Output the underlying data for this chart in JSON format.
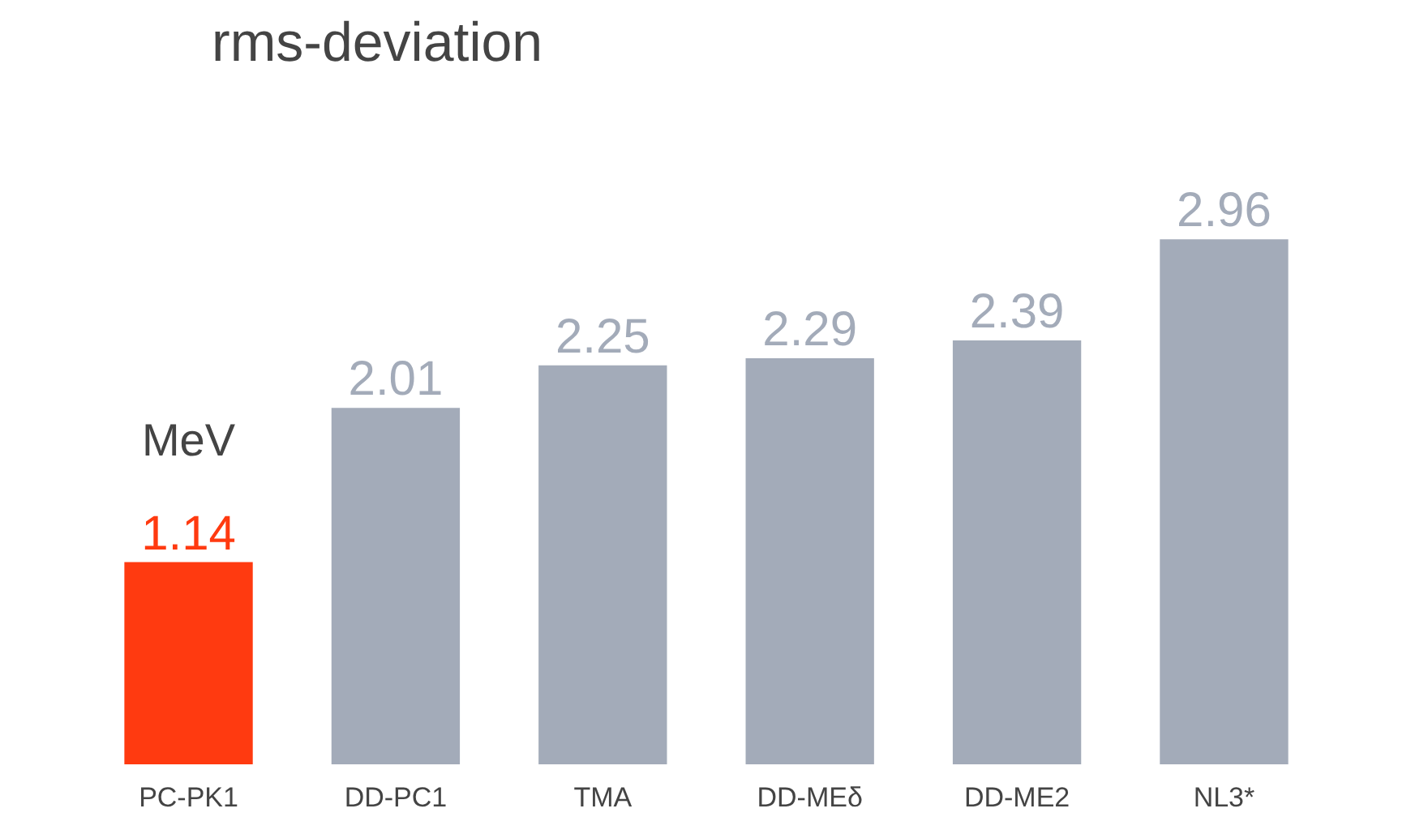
{
  "chart_data": {
    "type": "bar",
    "title": "rms-deviation",
    "ylabel": "MeV",
    "categories": [
      "PC-PK1",
      "DD-PC1",
      "TMA",
      "DD-MEδ",
      "DD-ME2",
      "NL3*"
    ],
    "values": [
      1.14,
      2.01,
      2.25,
      2.29,
      2.39,
      2.96
    ],
    "colors": [
      "#ff3a10",
      "#a3abb9",
      "#a3abb9",
      "#a3abb9",
      "#a3abb9",
      "#a3abb9"
    ],
    "data_labels": true,
    "grid": false
  }
}
